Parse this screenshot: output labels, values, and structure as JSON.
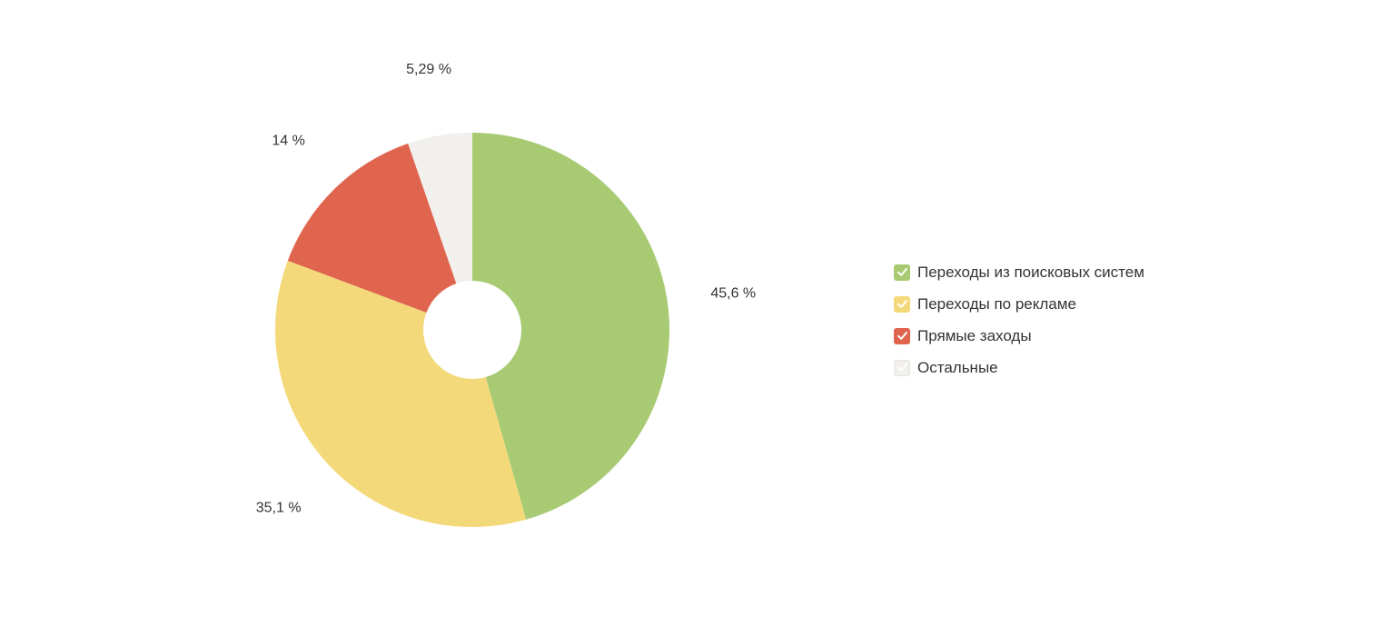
{
  "chart_data": {
    "type": "pie",
    "donut": true,
    "legend_position": "right",
    "slices": [
      {
        "label": "Переходы из поисковых систем",
        "value": 45.6,
        "value_label": "45,6 %",
        "color": "#a8ca73",
        "checked": true
      },
      {
        "label": "Переходы по рекламе",
        "value": 35.1,
        "value_label": "35,1 %",
        "color": "#f4d97b",
        "checked": true
      },
      {
        "label": "Прямые заходы",
        "value": 14,
        "value_label": "14 %",
        "color": "#e0654f",
        "checked": true
      },
      {
        "label": "Остальные",
        "value": 5.29,
        "value_label": "5,29 %",
        "color": "#f2f0ed",
        "checked": true
      }
    ]
  },
  "icons": {
    "legend_checkbox": "check-icon"
  }
}
